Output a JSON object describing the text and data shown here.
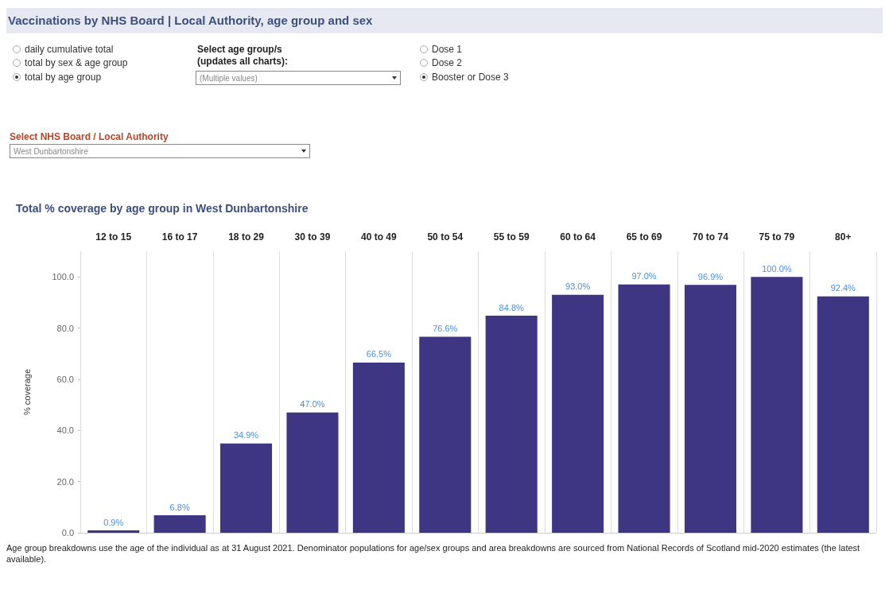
{
  "chart_data": {
    "type": "bar",
    "title": "Vaccinations by NHS Board | Local Authority, age group and sex",
    "subtitle": "Total % coverage by age group in West Dunbartonshire",
    "ylabel": "% coverage",
    "categories": [
      "12 to 15",
      "16 to 17",
      "18 to 29",
      "30 to 39",
      "40 to 49",
      "50 to 54",
      "55 to 59",
      "60 to 64",
      "65 to 69",
      "70 to 74",
      "75 to 79",
      "80+"
    ],
    "values": [
      0.9,
      6.8,
      34.9,
      47.0,
      66.5,
      76.6,
      84.8,
      93.0,
      97.0,
      96.9,
      100.0,
      92.4
    ],
    "value_labels": [
      "0.9%",
      "6.8%",
      "34.9%",
      "47.0%",
      "66.5%",
      "76.6%",
      "84.8%",
      "93.0%",
      "97.0%",
      "96.9%",
      "100.0%",
      "92.4%"
    ],
    "color": "#3f3683",
    "ylim": [
      0,
      110
    ],
    "yticks": [
      {
        "value": 0,
        "label": "0.0"
      },
      {
        "value": 20,
        "label": "20.0"
      },
      {
        "value": 40,
        "label": "40.0"
      },
      {
        "value": 60,
        "label": "60.0"
      },
      {
        "value": 80,
        "label": "80.0"
      },
      {
        "value": 100,
        "label": "100.0"
      }
    ],
    "grid": "x",
    "annotations": [
      "daily cumulative total",
      "total by sex & age group",
      "total by age group",
      "Select age group/s (updates all charts):",
      "(Multiple values)",
      "Dose 1",
      "Dose 2",
      "Booster or Dose 3",
      "Select NHS Board / Local Authority",
      "West Dunbartonshire",
      "Age group breakdowns use the age of the individual as at 31 August 2021. Denominator populations for age/sex groups and area breakdowns are sourced from National Records of Scotland mid-2020 estimates (the latest available)."
    ]
  }
}
